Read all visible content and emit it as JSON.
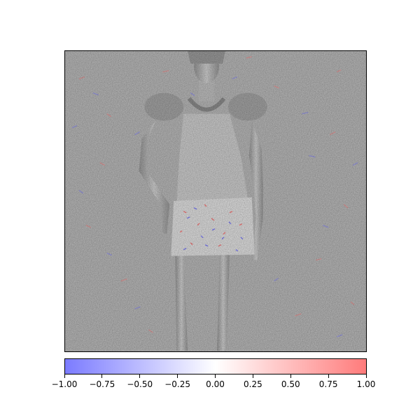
{
  "figure": {
    "description_colors": {
      "negative": "#7b7bff",
      "zero": "#ffffff",
      "positive": "#ff7b7b",
      "background_gray": "#bcbcbc"
    }
  },
  "colorbar": {
    "min": -1.0,
    "max": 1.0,
    "tick_labels": [
      "−1.00",
      "−0.75",
      "−0.50",
      "−0.25",
      "0.00",
      "0.25",
      "0.50",
      "0.75",
      "1.00"
    ],
    "tick_values": [
      -1.0,
      -0.75,
      -0.5,
      -0.25,
      0.0,
      0.25,
      0.5,
      0.75,
      1.0
    ]
  }
}
